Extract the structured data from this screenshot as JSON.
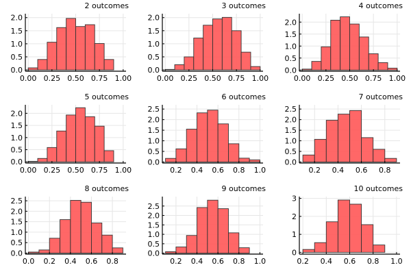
{
  "colors": {
    "bar_fill": "#ff5a5a",
    "bar_stroke": "#333333",
    "grid": "#e6e6e6",
    "axis": "#000000"
  },
  "chart_data": [
    {
      "type": "bar",
      "title": "2 outcomes",
      "bin_width": 0.1,
      "x": [
        0.05,
        0.15,
        0.25,
        0.35,
        0.45,
        0.55,
        0.65,
        0.75,
        0.85
      ],
      "values": [
        0.08,
        0.4,
        1.06,
        1.62,
        1.97,
        1.66,
        1.73,
        1.01,
        0.4
      ],
      "xlim": [
        -0.03,
        1.03
      ],
      "ylim": [
        -0.05,
        2.15
      ],
      "xticks": [
        0.0,
        0.25,
        0.5,
        0.75,
        1.0
      ],
      "xtick_labels": [
        "0.00",
        "0.25",
        "0.50",
        "0.75",
        "1.00"
      ],
      "yticks": [
        0.0,
        0.5,
        1.0,
        1.5,
        2.0
      ],
      "ytick_labels": [
        "0.0",
        "0.5",
        "1.0",
        "1.5",
        "2.0"
      ],
      "grid": true,
      "legend": "none"
    },
    {
      "type": "bar",
      "title": "3 outcomes",
      "bin_width": 0.1,
      "x": [
        0.05,
        0.15,
        0.25,
        0.35,
        0.45,
        0.55,
        0.65,
        0.75,
        0.85,
        0.95
      ],
      "values": [
        0.02,
        0.2,
        0.5,
        1.22,
        1.71,
        1.95,
        2.01,
        1.5,
        0.68,
        0.13
      ],
      "xlim": [
        -0.03,
        1.03
      ],
      "ylim": [
        -0.05,
        2.15
      ],
      "xticks": [
        0.0,
        0.25,
        0.5,
        0.75,
        1.0
      ],
      "xtick_labels": [
        "0.00",
        "0.25",
        "0.50",
        "0.75",
        "1.00"
      ],
      "yticks": [
        0.0,
        0.5,
        1.0,
        1.5,
        2.0
      ],
      "ytick_labels": [
        "0.0",
        "0.5",
        "1.0",
        "1.5",
        "2.0"
      ],
      "grid": true,
      "legend": "none"
    },
    {
      "type": "bar",
      "title": "4 outcomes",
      "bin_width": 0.1,
      "x": [
        0.05,
        0.15,
        0.25,
        0.35,
        0.45,
        0.55,
        0.65,
        0.75,
        0.85,
        0.95
      ],
      "values": [
        0.04,
        0.36,
        0.97,
        2.08,
        2.22,
        1.92,
        1.38,
        0.68,
        0.31,
        0.08
      ],
      "xlim": [
        -0.03,
        1.03
      ],
      "ylim": [
        -0.05,
        2.35
      ],
      "xticks": [
        0.0,
        0.25,
        0.5,
        0.75,
        1.0
      ],
      "xtick_labels": [
        "0.00",
        "0.25",
        "0.50",
        "0.75",
        "1.00"
      ],
      "yticks": [
        0.0,
        0.5,
        1.0,
        1.5,
        2.0
      ],
      "ytick_labels": [
        "0.0",
        "0.5",
        "1.0",
        "1.5",
        "2.0"
      ],
      "grid": true,
      "legend": "none"
    },
    {
      "type": "bar",
      "title": "5 outcomes",
      "bin_width": 0.1,
      "x": [
        0.05,
        0.15,
        0.25,
        0.35,
        0.45,
        0.55,
        0.65,
        0.75,
        0.85
      ],
      "values": [
        0.02,
        0.14,
        0.59,
        1.27,
        1.93,
        2.23,
        1.86,
        1.47,
        0.46
      ],
      "xlim": [
        -0.03,
        1.03
      ],
      "ylim": [
        -0.05,
        2.35
      ],
      "xticks": [
        0.0,
        0.25,
        0.5,
        0.75,
        1.0
      ],
      "xtick_labels": [
        "0.00",
        "0.25",
        "0.50",
        "0.75",
        "1.00"
      ],
      "yticks": [
        0.0,
        0.5,
        1.0,
        1.5,
        2.0
      ],
      "ytick_labels": [
        "0.0",
        "0.5",
        "1.0",
        "1.5",
        "2.0"
      ],
      "grid": true,
      "legend": "none"
    },
    {
      "type": "bar",
      "title": "6 outcomes",
      "bin_width": 0.1,
      "x": [
        0.15,
        0.25,
        0.35,
        0.45,
        0.55,
        0.65,
        0.75,
        0.85,
        0.95
      ],
      "values": [
        0.17,
        0.62,
        1.55,
        2.32,
        2.45,
        1.8,
        0.86,
        0.18,
        0.1
      ],
      "xlim": [
        0.07,
        1.03
      ],
      "ylim": [
        -0.05,
        2.7
      ],
      "xticks": [
        0.2,
        0.4,
        0.6,
        0.8,
        1.0
      ],
      "xtick_labels": [
        "0.2",
        "0.4",
        "0.6",
        "0.8",
        "1.0"
      ],
      "yticks": [
        0.0,
        0.5,
        1.0,
        1.5,
        2.0,
        2.5
      ],
      "ytick_labels": [
        "0.0",
        "0.5",
        "1.0",
        "1.5",
        "2.0",
        "2.5"
      ],
      "grid": true,
      "legend": "none"
    },
    {
      "type": "bar",
      "title": "7 outcomes",
      "bin_width": 0.1,
      "x": [
        0.15,
        0.25,
        0.35,
        0.45,
        0.55,
        0.65,
        0.75,
        0.85
      ],
      "values": [
        0.33,
        1.07,
        1.97,
        2.26,
        2.43,
        1.15,
        0.6,
        0.17
      ],
      "xlim": [
        0.07,
        0.93
      ],
      "ylim": [
        -0.05,
        2.7
      ],
      "xticks": [
        0.2,
        0.4,
        0.6,
        0.8
      ],
      "xtick_labels": [
        "0.2",
        "0.4",
        "0.6",
        "0.8"
      ],
      "yticks": [
        0.0,
        0.5,
        1.0,
        1.5,
        2.0,
        2.5
      ],
      "ytick_labels": [
        "0.0",
        "0.5",
        "1.0",
        "1.5",
        "2.0",
        "2.5"
      ],
      "grid": true,
      "legend": "none"
    },
    {
      "type": "bar",
      "title": "8 outcomes",
      "bin_width": 0.1,
      "x": [
        0.05,
        0.15,
        0.25,
        0.35,
        0.45,
        0.55,
        0.65,
        0.75,
        0.85
      ],
      "values": [
        0.05,
        0.15,
        0.71,
        1.6,
        2.52,
        2.43,
        1.44,
        0.86,
        0.25
      ],
      "xlim": [
        -0.03,
        0.93
      ],
      "ylim": [
        -0.05,
        2.7
      ],
      "xticks": [
        0.0,
        0.2,
        0.4,
        0.6,
        0.8
      ],
      "xtick_labels": [
        "0.0",
        "0.2",
        "0.4",
        "0.6",
        "0.8"
      ],
      "yticks": [
        0.0,
        0.5,
        1.0,
        1.5,
        2.0,
        2.5
      ],
      "ytick_labels": [
        "0.0",
        "0.5",
        "1.0",
        "1.5",
        "2.0",
        "2.5"
      ],
      "grid": true,
      "legend": "none"
    },
    {
      "type": "bar",
      "title": "9 outcomes",
      "bin_width": 0.1,
      "x": [
        0.15,
        0.25,
        0.35,
        0.45,
        0.55,
        0.65,
        0.75,
        0.85
      ],
      "values": [
        0.08,
        0.33,
        0.94,
        2.42,
        2.81,
        2.36,
        1.08,
        0.29
      ],
      "xlim": [
        0.07,
        1.03
      ],
      "ylim": [
        -0.05,
        3.0
      ],
      "xticks": [
        0.2,
        0.4,
        0.6,
        0.8,
        1.0
      ],
      "xtick_labels": [
        "0.2",
        "0.4",
        "0.6",
        "0.8",
        "1.0"
      ],
      "yticks": [
        0.0,
        0.5,
        1.0,
        1.5,
        2.0,
        2.5
      ],
      "ytick_labels": [
        "0.0",
        "0.5",
        "1.0",
        "1.5",
        "2.0",
        "2.5"
      ],
      "grid": true,
      "legend": "none"
    },
    {
      "type": "bar",
      "title": "10 outcomes",
      "bin_width": 0.1,
      "x": [
        0.25,
        0.35,
        0.45,
        0.55,
        0.65,
        0.75,
        0.85
      ],
      "values": [
        0.16,
        0.54,
        1.7,
        2.91,
        2.68,
        1.54,
        0.41
      ],
      "xlim": [
        0.17,
        1.03
      ],
      "ylim": [
        -0.1,
        3.1
      ],
      "xticks": [
        0.2,
        0.4,
        0.6,
        0.8,
        1.0
      ],
      "xtick_labels": [
        "0.2",
        "0.4",
        "0.6",
        "0.8",
        "1.0"
      ],
      "yticks": [
        0,
        1,
        2,
        3
      ],
      "ytick_labels": [
        "0",
        "1",
        "2",
        "3"
      ],
      "grid": true,
      "legend": "none"
    }
  ]
}
